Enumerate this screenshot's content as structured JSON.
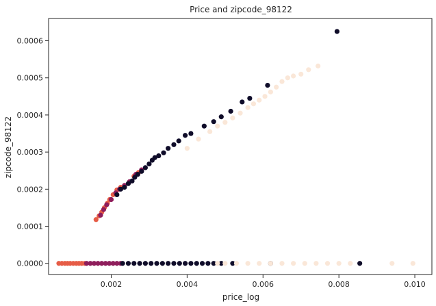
{
  "chart_data": {
    "type": "scatter",
    "title": "Price and zipcode_98122",
    "xlabel": "price_log",
    "ylabel": "zipcode_98122",
    "xlim": [
      0.00035,
      0.01045
    ],
    "ylim": [
      -3e-05,
      0.00066
    ],
    "xticks": [
      "0.002",
      "0.004",
      "0.006",
      "0.008",
      "0.010"
    ],
    "xtick_values": [
      0.002,
      0.004,
      0.006,
      0.008,
      0.01
    ],
    "yticks": [
      "0.0000",
      "0.0001",
      "0.0002",
      "0.0003",
      "0.0004",
      "0.0005",
      "0.0006"
    ],
    "ytick_values": [
      0.0,
      0.0001,
      0.0002,
      0.0003,
      0.0004,
      0.0005,
      0.0006
    ],
    "grid": false,
    "colors": {
      "cream": "#fae7d8",
      "black": "#0f0c29",
      "purple": "#8e1d5b",
      "orange": "#e65c46"
    },
    "series": [
      {
        "color": "orange",
        "points": [
          [
            0.00062,
            0
          ],
          [
            0.0007,
            0
          ],
          [
            0.00078,
            0
          ],
          [
            0.00085,
            0
          ],
          [
            0.00092,
            0
          ],
          [
            0.001,
            0
          ],
          [
            0.00108,
            0
          ],
          [
            0.00115,
            0
          ],
          [
            0.00122,
            0
          ],
          [
            0.0013,
            0
          ],
          [
            0.0016,
            0.000118
          ],
          [
            0.00168,
            0.000128
          ],
          [
            0.00175,
            0.000138
          ],
          [
            0.00182,
            0.00015
          ],
          [
            0.0019,
            0.000162
          ],
          [
            0.00196,
            0.000172
          ],
          [
            0.00205,
            0.000185
          ],
          [
            0.00215,
            0.000198
          ],
          [
            0.00225,
            0.000205
          ],
          [
            0.0026,
            0.000235
          ],
          [
            0.00272,
            0.000245
          ]
        ]
      },
      {
        "color": "purple",
        "points": [
          [
            0.00135,
            0
          ],
          [
            0.00145,
            0
          ],
          [
            0.00155,
            0
          ],
          [
            0.00165,
            0
          ],
          [
            0.00175,
            0
          ],
          [
            0.00185,
            0
          ],
          [
            0.00195,
            0
          ],
          [
            0.00205,
            0
          ],
          [
            0.00215,
            0
          ],
          [
            0.00225,
            0
          ],
          [
            0.00172,
            0.00013
          ],
          [
            0.0018,
            0.000145
          ],
          [
            0.00188,
            0.000158
          ],
          [
            0.002,
            0.000172
          ],
          [
            0.00212,
            0.00019
          ],
          [
            0.00222,
            0.0002
          ],
          [
            0.00235,
            0.00021
          ],
          [
            0.00248,
            0.00022
          ],
          [
            0.00265,
            0.00024
          ],
          [
            0.0028,
            0.000252
          ]
        ]
      },
      {
        "color": "black",
        "points": [
          [
            0.0023,
            0
          ],
          [
            0.00245,
            0
          ],
          [
            0.0026,
            0
          ],
          [
            0.00275,
            0
          ],
          [
            0.0029,
            0
          ],
          [
            0.00305,
            0
          ],
          [
            0.0032,
            0
          ],
          [
            0.00335,
            0
          ],
          [
            0.0035,
            0
          ],
          [
            0.00365,
            0
          ],
          [
            0.0038,
            0
          ],
          [
            0.00395,
            0
          ],
          [
            0.0041,
            0
          ],
          [
            0.00425,
            0
          ],
          [
            0.0044,
            0
          ],
          [
            0.00455,
            0
          ],
          [
            0.0047,
            0
          ],
          [
            0.0049,
            0
          ],
          [
            0.0052,
            0
          ],
          [
            0.0062,
            0
          ],
          [
            0.00855,
            0
          ],
          [
            0.00215,
            0.000185
          ],
          [
            0.00225,
            0.0002
          ],
          [
            0.00235,
            0.000205
          ],
          [
            0.00245,
            0.000215
          ],
          [
            0.00255,
            0.000222
          ],
          [
            0.00262,
            0.000232
          ],
          [
            0.0027,
            0.00024
          ],
          [
            0.0028,
            0.000248
          ],
          [
            0.0029,
            0.000258
          ],
          [
            0.003,
            0.000268
          ],
          [
            0.00308,
            0.000278
          ],
          [
            0.00315,
            0.000285
          ],
          [
            0.00325,
            0.00029
          ],
          [
            0.00338,
            0.000298
          ],
          [
            0.0035,
            0.00031
          ],
          [
            0.00365,
            0.00032
          ],
          [
            0.00378,
            0.00033
          ],
          [
            0.00395,
            0.000345
          ],
          [
            0.0041,
            0.00035
          ],
          [
            0.00445,
            0.00037
          ],
          [
            0.0047,
            0.000382
          ],
          [
            0.0049,
            0.000395
          ],
          [
            0.00515,
            0.00041
          ],
          [
            0.00545,
            0.000435
          ],
          [
            0.00565,
            0.000445
          ],
          [
            0.00612,
            0.00048
          ],
          [
            0.00795,
            0.000625
          ]
        ]
      },
      {
        "color": "cream",
        "points": [
          [
            0.0048,
            0
          ],
          [
            0.005,
            0
          ],
          [
            0.0053,
            0
          ],
          [
            0.0056,
            0
          ],
          [
            0.0059,
            0
          ],
          [
            0.0062,
            0
          ],
          [
            0.0065,
            0
          ],
          [
            0.0068,
            0
          ],
          [
            0.0071,
            0
          ],
          [
            0.0074,
            0
          ],
          [
            0.0077,
            0
          ],
          [
            0.008,
            0
          ],
          [
            0.0083,
            0
          ],
          [
            0.0094,
            0
          ],
          [
            0.00995,
            0
          ],
          [
            0.004,
            0.00031
          ],
          [
            0.0043,
            0.000335
          ],
          [
            0.0046,
            0.000355
          ],
          [
            0.0048,
            0.00037
          ],
          [
            0.005,
            0.00038
          ],
          [
            0.0052,
            0.000392
          ],
          [
            0.0054,
            0.000405
          ],
          [
            0.0056,
            0.00042
          ],
          [
            0.00575,
            0.00043
          ],
          [
            0.0059,
            0.00044
          ],
          [
            0.00605,
            0.00045
          ],
          [
            0.0062,
            0.000462
          ],
          [
            0.00635,
            0.000475
          ],
          [
            0.0065,
            0.00049
          ],
          [
            0.00665,
            0.0005
          ],
          [
            0.0068,
            0.000505
          ],
          [
            0.007,
            0.00051
          ],
          [
            0.0072,
            0.000522
          ],
          [
            0.00745,
            0.000532
          ]
        ]
      }
    ]
  }
}
